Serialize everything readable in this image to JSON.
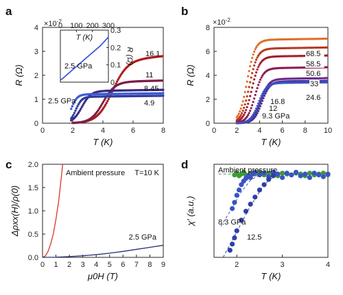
{
  "chart_data": [
    {
      "panel": "a",
      "type": "scatter",
      "xlabel": "T (K)",
      "ylabel": "R (Ω)",
      "xlim": [
        0,
        8
      ],
      "ylim": [
        0,
        4
      ],
      "xticks": [
        "0",
        "2",
        "4",
        "6",
        "8"
      ],
      "yticks": [
        "0",
        "1",
        "2",
        "3",
        "4"
      ],
      "series": [
        {
          "name": "16.1",
          "color": "#b01c1c",
          "shape": "sigmoid",
          "tc": 4.6,
          "width": 0.5,
          "onset": 2.2,
          "rn": 2.6,
          "slope": 0.06,
          "xstart": 2.0,
          "xend": 8.0
        },
        {
          "name": "11",
          "color": "#7a1f4a",
          "shape": "sigmoid",
          "tc": 4.0,
          "width": 0.4,
          "onset": 2.6,
          "rn": 1.72,
          "slope": 0.015,
          "xstart": 2.0,
          "xend": 8.0
        },
        {
          "name": "8.45",
          "color": "#3a2a80",
          "shape": "sigmoid",
          "tc": 2.6,
          "width": 0.3,
          "onset": 1.9,
          "rn": 1.34,
          "slope": 0.01,
          "xstart": 1.9,
          "xend": 8.0
        },
        {
          "name": "4.9",
          "color": "#2e3d9a",
          "shape": "sigmoid",
          "tc": 2.2,
          "width": 0.2,
          "onset": 1.9,
          "rn": 1.1,
          "slope": 0.008,
          "xstart": 1.9,
          "xend": 8.0
        },
        {
          "name": "2.5 GPa",
          "color": "#3d5bd6",
          "shape": "sigmoid",
          "tc": 1.9,
          "width": 0.2,
          "onset": 1.9,
          "rn": 1.2,
          "slope": 0.008,
          "xstart": 1.9,
          "xend": 8.0
        }
      ],
      "inset": {
        "xlabel": "T (K)",
        "ylabel": "R (Ω)",
        "xlim": [
          0,
          300
        ],
        "ylim": [
          0,
          0.3
        ],
        "xticks": [
          "0",
          "100",
          "200",
          "300"
        ],
        "yticks": [
          "0",
          "0.1",
          "0.2",
          "0.3"
        ],
        "multiplier": "×10",
        "multiplier_exp": "-2",
        "series_label": "2.5 GPa",
        "color": "#3d5bd6",
        "x": [
          0,
          20,
          50,
          100,
          150,
          200,
          250,
          300
        ],
        "y": [
          0.012,
          0.025,
          0.05,
          0.09,
          0.13,
          0.17,
          0.21,
          0.26
        ]
      }
    },
    {
      "panel": "b",
      "type": "scatter",
      "xlabel": "T (K)",
      "ylabel": "R (Ω)",
      "xlim": [
        0,
        10
      ],
      "ylim": [
        0,
        0.08
      ],
      "xticks": [
        "0",
        "2",
        "4",
        "6",
        "8",
        "10"
      ],
      "yticks": [
        "0",
        "2",
        "4",
        "6",
        "8"
      ],
      "multiplier": "×10",
      "multiplier_exp": "-2",
      "series": [
        {
          "name": "68.5",
          "color": "#e0702a",
          "tc": 2.9,
          "width": 0.35,
          "rn": 0.0695,
          "slope": 0.00015
        },
        {
          "name": "58.5",
          "color": "#b83a24",
          "tc": 3.1,
          "width": 0.35,
          "rn": 0.0622,
          "slope": 0.00015
        },
        {
          "name": "50.6",
          "color": "#a81d2d",
          "tc": 3.3,
          "width": 0.35,
          "rn": 0.0555,
          "slope": 0.00015
        },
        {
          "name": "33",
          "color": "#8e1c4e",
          "tc": 3.6,
          "width": 0.35,
          "rn": 0.0458,
          "slope": 0.00015
        },
        {
          "name": "24.6",
          "color": "#6a2a86",
          "tc": 4.1,
          "width": 0.35,
          "rn": 0.0368,
          "slope": 0.00015
        },
        {
          "name": "16.8",
          "color": "#4d2f9c",
          "tc": 4.2,
          "width": 0.35,
          "rn": 0.0348,
          "slope": 0.0001
        },
        {
          "name": "12",
          "color": "#3f3da8",
          "tc": 4.0,
          "width": 0.35,
          "rn": 0.034,
          "slope": 0.0001
        },
        {
          "name": "9.3 GPa",
          "color": "#3a52c0",
          "tc": 3.9,
          "width": 0.35,
          "rn": 0.0335,
          "slope": 0.0001
        }
      ]
    },
    {
      "panel": "c",
      "type": "line",
      "xlabel": "μ0H (T)",
      "ylabel": "Δρxx(H)/ρ(0)",
      "xlim": [
        0,
        9
      ],
      "ylim": [
        0,
        2
      ],
      "xticks": [
        "0",
        "1",
        "2",
        "3",
        "4",
        "5",
        "6",
        "7",
        "8",
        "9"
      ],
      "yticks": [
        "0.0",
        "0.5",
        "1.0",
        "1.5",
        "2.0"
      ],
      "annotation": "T=10 K",
      "series": [
        {
          "name": "Ambient pressure",
          "color": "#d8342e",
          "x": [
            0,
            0.2,
            0.4,
            0.6,
            0.8,
            1.0,
            1.2,
            1.4,
            1.5
          ],
          "y": [
            0,
            0.03,
            0.12,
            0.28,
            0.5,
            0.82,
            1.2,
            1.72,
            2.0
          ]
        },
        {
          "name": "2.5 GPa",
          "color": "#27306e",
          "x": [
            0,
            1,
            2,
            3,
            4,
            5,
            6,
            7,
            8,
            9
          ],
          "y": [
            0,
            0.004,
            0.016,
            0.034,
            0.058,
            0.09,
            0.128,
            0.172,
            0.215,
            0.26
          ]
        }
      ]
    },
    {
      "panel": "d",
      "type": "scatter",
      "xlabel": "T (K)",
      "ylabel": "χ′ (a.u.)",
      "xlim": [
        1.5,
        4
      ],
      "ylim": [
        0,
        1.05
      ],
      "xticks": [
        "2",
        "3",
        "4"
      ],
      "series": [
        {
          "name": "Ambient pressure",
          "color": "#3d9a3a",
          "x": [
            1.95,
            2.0,
            2.05,
            2.1,
            2.15,
            2.2,
            2.3,
            2.4,
            2.5,
            2.6,
            2.7,
            2.8,
            2.9,
            3.0,
            3.1,
            3.2,
            3.3,
            3.4,
            3.5,
            3.6,
            3.7,
            3.8,
            3.9,
            4.0
          ],
          "y": [
            0.93,
            0.95,
            0.92,
            0.94,
            0.96,
            0.93,
            0.95,
            0.94,
            0.96,
            0.93,
            0.95,
            0.94,
            0.92,
            0.95,
            0.94,
            0.93,
            0.95,
            0.94,
            0.92,
            0.95,
            0.93,
            0.94,
            0.95,
            0.93
          ]
        },
        {
          "name": "8.3 GPa",
          "color": "#3b52c4",
          "x": [
            1.9,
            1.95,
            2.0,
            2.05,
            2.1,
            2.15,
            2.2,
            2.25,
            2.3,
            2.35,
            2.4,
            2.5,
            2.6,
            2.7,
            2.8,
            2.9,
            3.0,
            3.1,
            3.2,
            3.3,
            3.4,
            3.5,
            3.6,
            3.7,
            3.8,
            3.9,
            4.0
          ],
          "y": [
            0.55,
            0.62,
            0.7,
            0.76,
            0.82,
            0.86,
            0.89,
            0.92,
            0.9,
            0.94,
            0.96,
            0.93,
            0.95,
            0.91,
            0.96,
            0.94,
            0.9,
            0.95,
            0.93,
            0.96,
            0.92,
            0.94,
            0.9,
            0.95,
            0.93,
            0.91,
            0.94
          ]
        },
        {
          "name": "12.5",
          "color": "#2e3fa8",
          "x": [
            1.85,
            1.9,
            1.95,
            2.0,
            2.1,
            2.2,
            2.3,
            2.4,
            2.5,
            2.6,
            2.7,
            2.8
          ],
          "y": [
            0.08,
            0.15,
            0.22,
            0.3,
            0.42,
            0.52,
            0.6,
            0.68,
            0.76,
            0.82,
            0.88,
            0.92
          ]
        }
      ],
      "fits": [
        {
          "color": "#3d9a3a",
          "x": [
            1.6,
            4.0
          ],
          "y": [
            0.94,
            0.94
          ],
          "dash": true
        },
        {
          "color": "#3b52c4",
          "x": [
            1.65,
            1.9,
            2.1,
            2.3,
            2.5
          ],
          "y": [
            0.35,
            0.56,
            0.74,
            0.87,
            0.93
          ],
          "dash": true
        },
        {
          "color": "#2e3fa8",
          "x": [
            1.7,
            2.0,
            2.3,
            2.6,
            2.85
          ],
          "y": [
            0.0,
            0.29,
            0.58,
            0.82,
            0.93
          ],
          "dash": true
        }
      ]
    }
  ]
}
